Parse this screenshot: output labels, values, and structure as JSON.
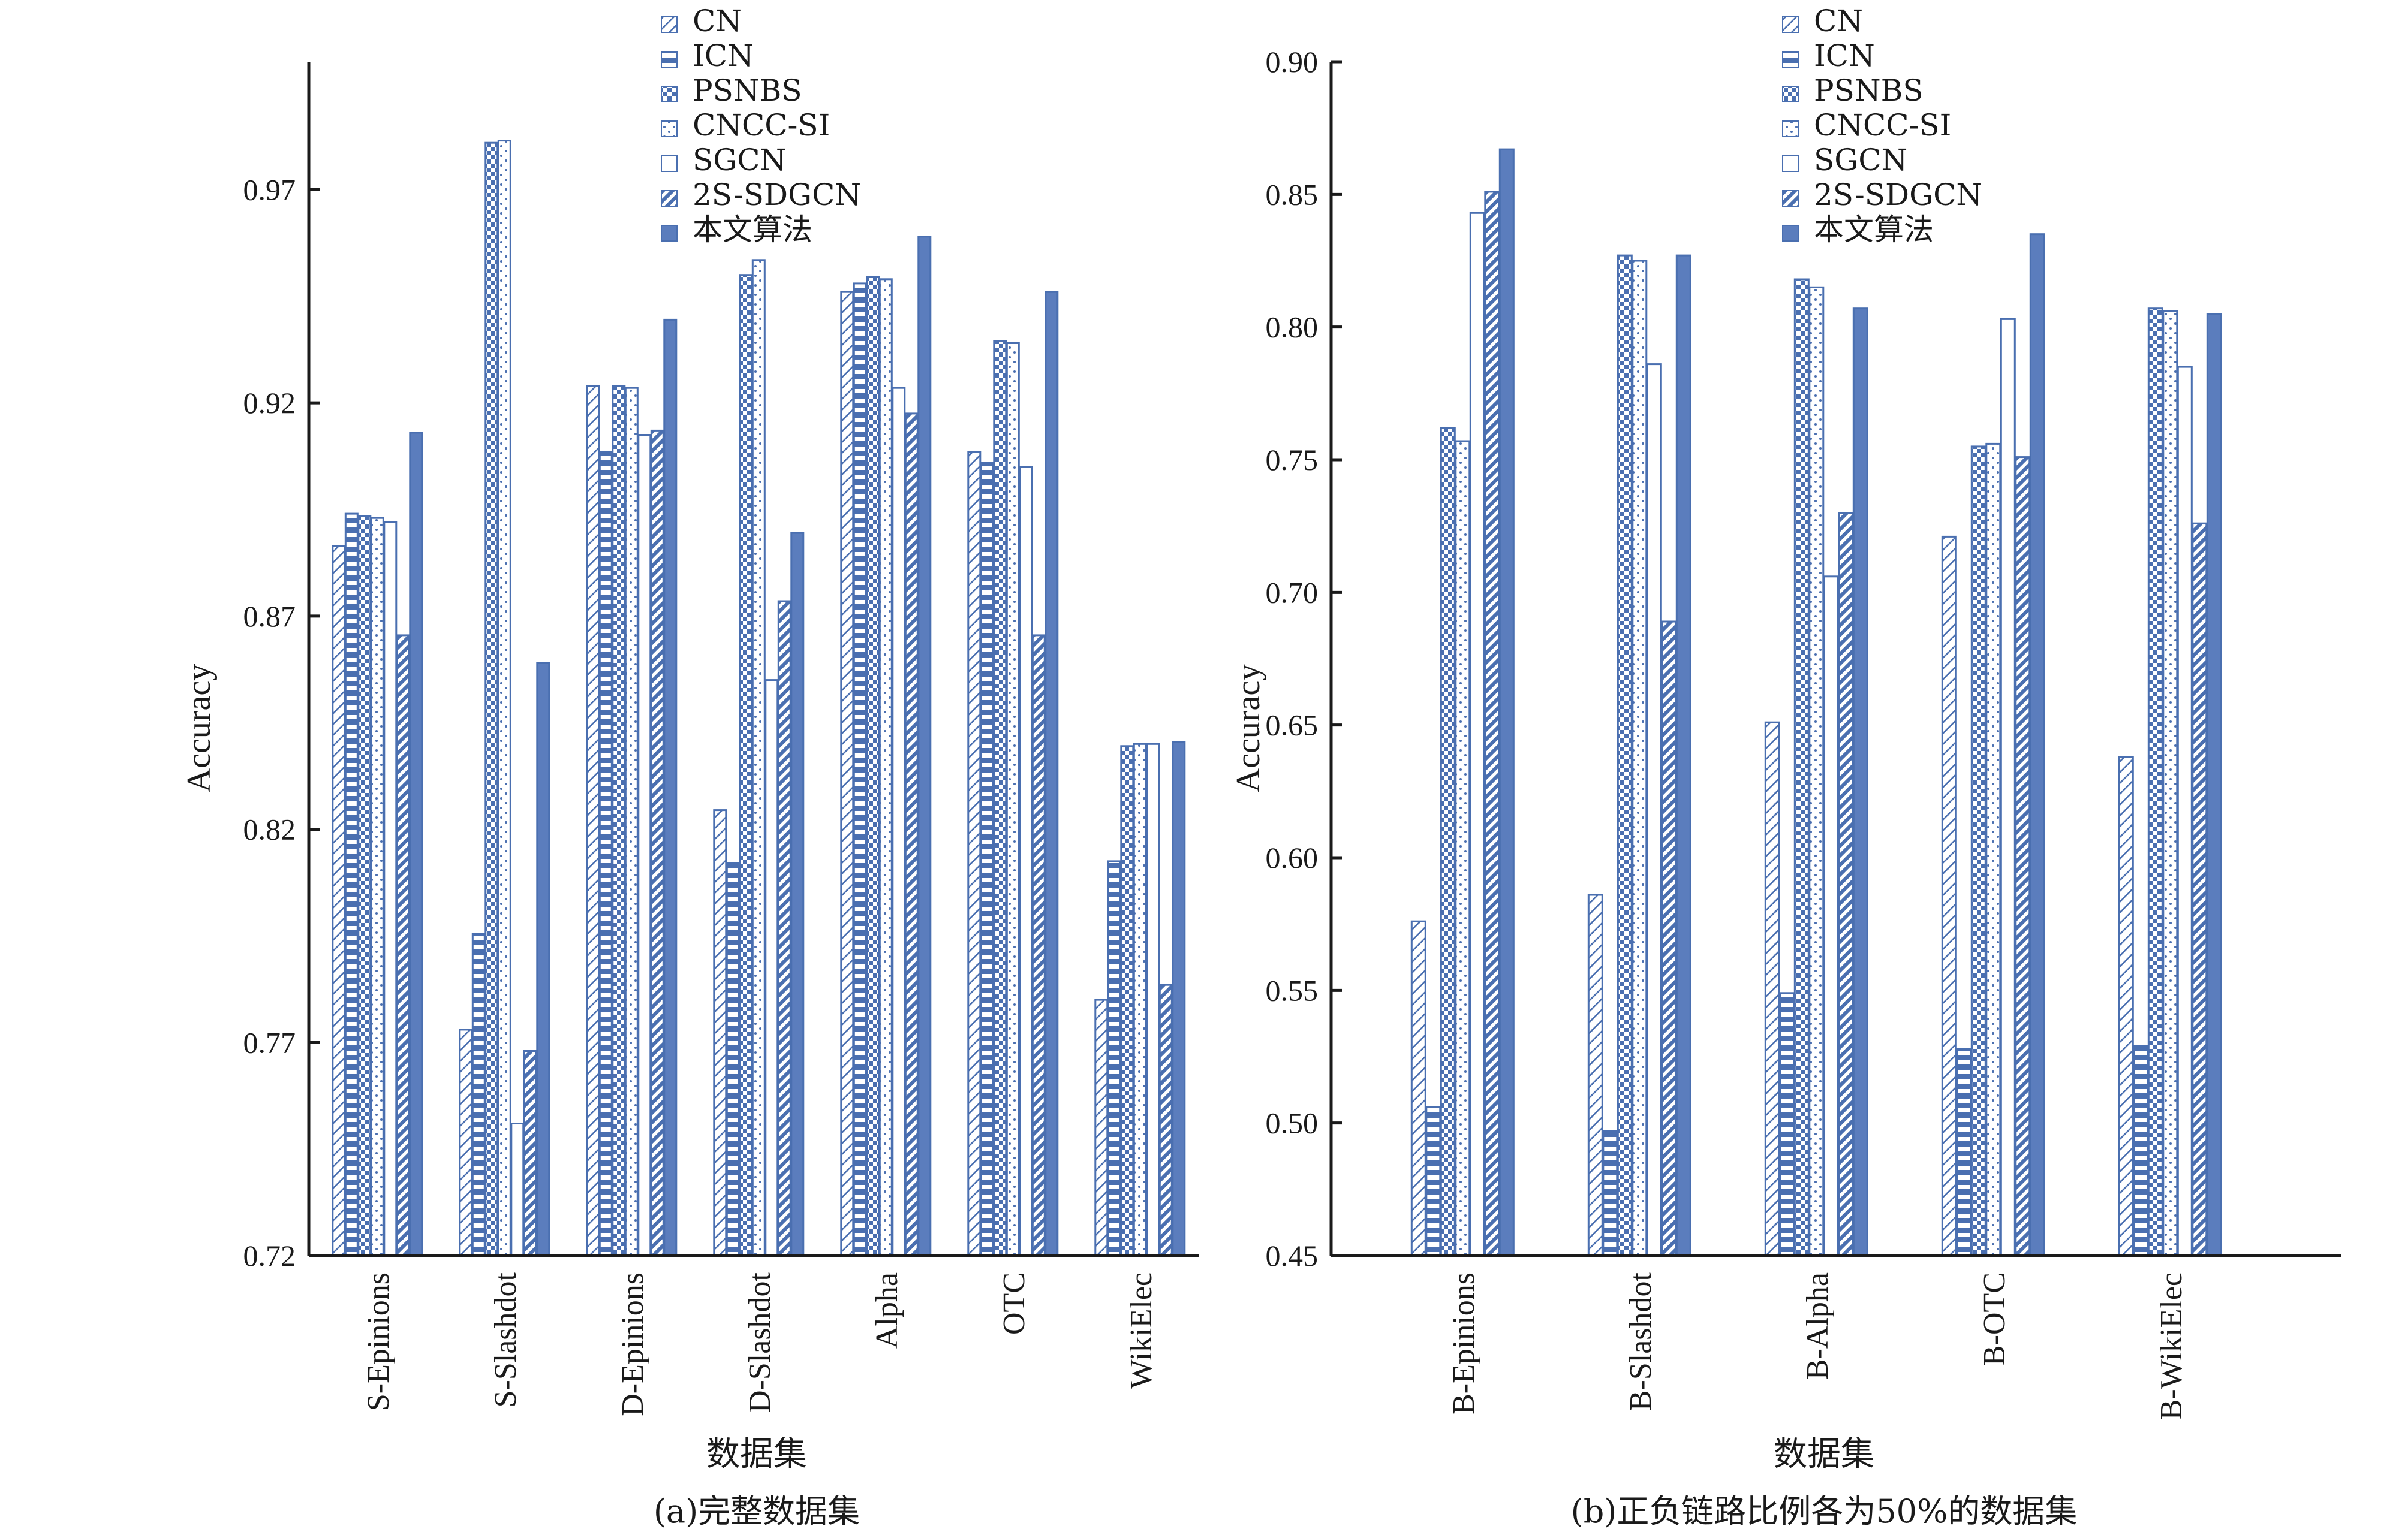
{
  "legend": [
    "CN",
    "ICN",
    "PSNBS",
    "CNCC-SI",
    "SGCN",
    "2S-SDGCN",
    "本文算法"
  ],
  "series_colors": {
    "primary": "#4a6fb0",
    "fill": "#5b7dbd",
    "background": "#ffffff",
    "axis": "#1a1a1a"
  },
  "chart_data": [
    {
      "type": "bar",
      "caption": "(a)完整数据集",
      "xlabel": "数据集",
      "ylabel": "Accuracy",
      "ylim": [
        0.72,
        1.0
      ],
      "yticks": [
        0.72,
        0.77,
        0.82,
        0.87,
        0.92,
        0.97
      ],
      "ytick_labels": [
        "0.72",
        "0.77",
        "0.82",
        "0.87",
        "0.92",
        "0.97"
      ],
      "categories": [
        "S-Epinions",
        "S-Slashdot",
        "D-Epinions",
        "D-Slashdot",
        "Alpha",
        "OTC",
        "WikiElec"
      ],
      "series": [
        {
          "name": "CN",
          "pattern": "diag",
          "values": [
            0.8865,
            0.773,
            0.924,
            0.8245,
            0.946,
            0.9085,
            0.78
          ]
        },
        {
          "name": "ICN",
          "pattern": "hstripe",
          "values": [
            0.894,
            0.7955,
            0.9085,
            0.812,
            0.948,
            0.906,
            0.8125
          ]
        },
        {
          "name": "PSNBS",
          "pattern": "checker",
          "values": [
            0.8935,
            0.981,
            0.924,
            0.95,
            0.9495,
            0.9345,
            0.8395
          ]
        },
        {
          "name": "CNCC-SI",
          "pattern": "dots",
          "values": [
            0.893,
            0.9815,
            0.9235,
            0.9535,
            0.949,
            0.934,
            0.84
          ]
        },
        {
          "name": "SGCN",
          "pattern": "white",
          "values": [
            0.892,
            0.751,
            0.9125,
            0.855,
            0.9235,
            0.905,
            0.84
          ]
        },
        {
          "name": "2S-SDGCN",
          "pattern": "zigzag",
          "values": [
            0.8655,
            0.768,
            0.9135,
            0.8735,
            0.9175,
            0.8655,
            0.7835
          ]
        },
        {
          "name": "本文算法",
          "pattern": "solid",
          "values": [
            0.913,
            0.859,
            0.9395,
            0.8895,
            0.959,
            0.946,
            0.8405
          ]
        }
      ]
    },
    {
      "type": "bar",
      "caption": "(b)正负链路比例各为50%的数据集",
      "xlabel": "数据集",
      "ylabel": "Accuracy",
      "ylim": [
        0.45,
        0.9
      ],
      "yticks": [
        0.45,
        0.5,
        0.55,
        0.6,
        0.65,
        0.7,
        0.75,
        0.8,
        0.85,
        0.9
      ],
      "ytick_labels": [
        "0.45",
        "0.50",
        "0.55",
        "0.60",
        "0.65",
        "0.70",
        "0.75",
        "0.80",
        "0.85",
        "0.90"
      ],
      "categories": [
        "B-Epinions",
        "B-Slashdot",
        "B-Alpha",
        "B-OTC",
        "B-WikiElec"
      ],
      "series": [
        {
          "name": "CN",
          "pattern": "diag",
          "values": [
            0.576,
            0.586,
            0.651,
            0.721,
            0.638
          ]
        },
        {
          "name": "ICN",
          "pattern": "hstripe",
          "values": [
            0.506,
            0.497,
            0.549,
            0.528,
            0.529
          ]
        },
        {
          "name": "PSNBS",
          "pattern": "checker",
          "values": [
            0.762,
            0.827,
            0.818,
            0.755,
            0.807
          ]
        },
        {
          "name": "CNCC-SI",
          "pattern": "dots",
          "values": [
            0.757,
            0.825,
            0.815,
            0.756,
            0.806
          ]
        },
        {
          "name": "SGCN",
          "pattern": "white",
          "values": [
            0.843,
            0.786,
            0.706,
            0.803,
            0.785
          ]
        },
        {
          "name": "2S-SDGCN",
          "pattern": "zigzag",
          "values": [
            0.851,
            0.689,
            0.73,
            0.751,
            0.726
          ]
        },
        {
          "name": "本文算法",
          "pattern": "solid",
          "values": [
            0.867,
            0.827,
            0.807,
            0.835,
            0.805
          ]
        }
      ]
    }
  ]
}
